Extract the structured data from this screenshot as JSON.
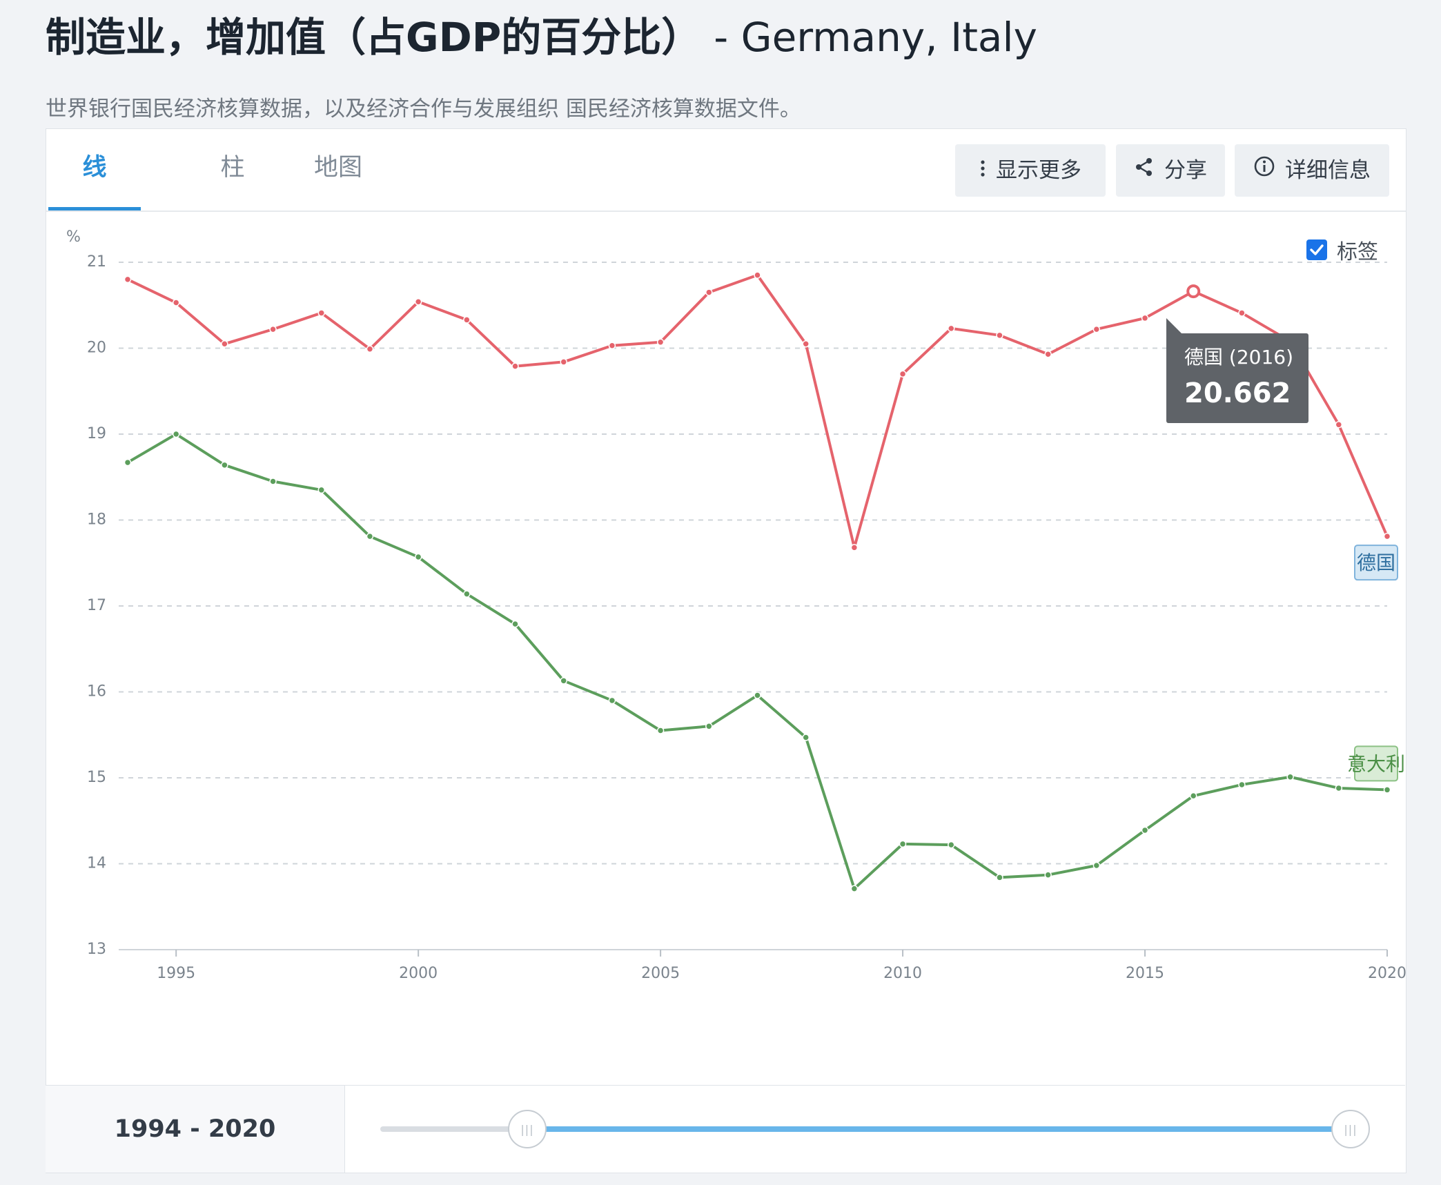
{
  "header": {
    "title": "制造业，增加值（占GDP的百分比）",
    "countries": "- Germany, Italy",
    "subtitle": "世界银行国民经济核算数据，以及经济合作与发展组织 国民经济核算数据文件。"
  },
  "tabs": [
    {
      "label": "线",
      "active": true
    },
    {
      "label": "柱",
      "active": false
    },
    {
      "label": "地图",
      "active": false
    }
  ],
  "toolbar": {
    "more_label": "显示更多",
    "share_label": "分享",
    "details_label": "详细信息"
  },
  "label_toggle": {
    "label": "标签",
    "checked": true
  },
  "tooltip": {
    "title": "德国 (2016)",
    "value": "20.662",
    "series": 0,
    "year": 2016
  },
  "range": {
    "label": "1994 - 2020",
    "start": 1994,
    "end": 2020
  },
  "colors": {
    "germany": "#e5636c",
    "italy": "#5c9e5c",
    "accent": "#2a8fd8",
    "tooltip_bg": "#5f6368"
  },
  "icons": {
    "more": "vertical-dots-icon",
    "share": "share-icon",
    "details": "info-icon",
    "checkbox": "checkmark-icon",
    "handle": "grip-icon"
  },
  "chart_data": {
    "type": "line",
    "ylabel": "%",
    "ylim": [
      13,
      21
    ],
    "xlim": [
      1994,
      2020
    ],
    "grid": true,
    "yticks": [
      13,
      14,
      15,
      16,
      17,
      18,
      19,
      20,
      21
    ],
    "xticks": [
      1995,
      2000,
      2005,
      2010,
      2015,
      2020
    ],
    "x": [
      1994,
      1995,
      1996,
      1997,
      1998,
      1999,
      2000,
      2001,
      2002,
      2003,
      2004,
      2005,
      2006,
      2007,
      2008,
      2009,
      2010,
      2011,
      2012,
      2013,
      2014,
      2015,
      2016,
      2017,
      2018,
      2019,
      2020
    ],
    "series": [
      {
        "name": "德国",
        "color": "#e5636c",
        "values": [
          20.8,
          20.53,
          20.05,
          20.22,
          20.41,
          19.99,
          20.54,
          20.33,
          19.79,
          19.84,
          20.03,
          20.07,
          20.65,
          20.85,
          20.05,
          17.68,
          19.7,
          20.23,
          20.15,
          19.93,
          20.22,
          20.35,
          20.662,
          20.41,
          20.08,
          19.11,
          17.81
        ]
      },
      {
        "name": "意大利",
        "color": "#5c9e5c",
        "values": [
          18.67,
          19.0,
          18.64,
          18.45,
          18.35,
          17.81,
          17.57,
          17.14,
          16.79,
          16.13,
          15.9,
          15.55,
          15.6,
          15.96,
          15.47,
          13.71,
          14.23,
          14.22,
          13.84,
          13.87,
          13.98,
          14.39,
          14.79,
          14.92,
          15.01,
          14.88,
          14.86
        ]
      }
    ]
  }
}
